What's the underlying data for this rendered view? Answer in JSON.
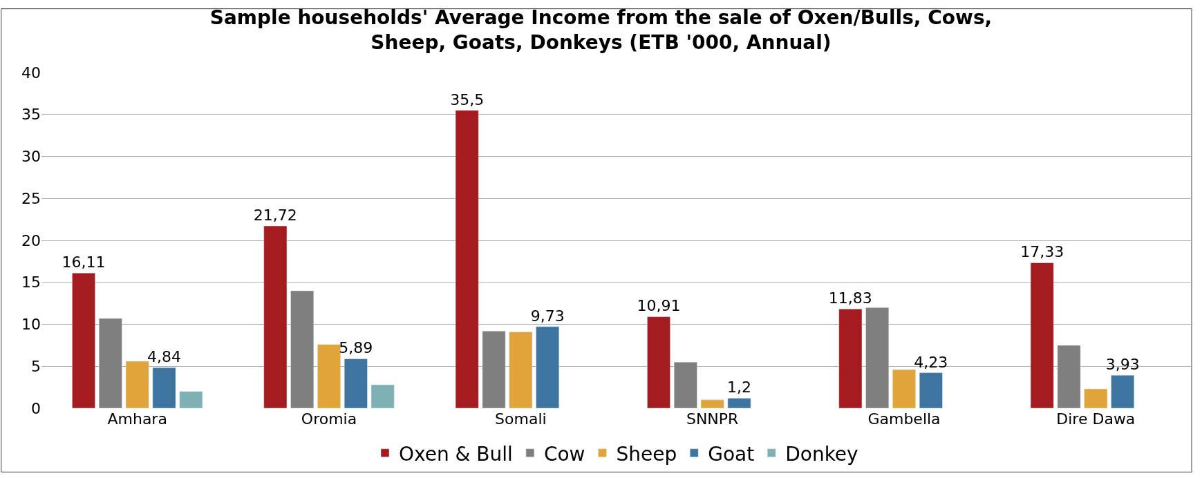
{
  "chart_data": {
    "type": "bar",
    "title": "Sample households' Average Income from the sale of Oxen/Bulls, Cows,\nSheep, Goats, Donkeys (ETB '000, Annual)",
    "categories": [
      "Amhara",
      "Oromia",
      "Somali",
      "SNNPR",
      "Gambella",
      "Dire Dawa"
    ],
    "series": [
      {
        "name": "Oxen & Bull",
        "color": "#a51c20",
        "values": [
          16.11,
          21.72,
          35.5,
          10.91,
          11.83,
          17.33
        ],
        "value_labels": [
          "16,11",
          "21,72",
          "35,5",
          "10,91",
          "11,83",
          "17,33"
        ]
      },
      {
        "name": "Cow",
        "color": "#7f7f7f",
        "values": [
          10.7,
          14.0,
          9.2,
          5.5,
          12.0,
          7.5
        ]
      },
      {
        "name": "Sheep",
        "color": "#e0a43a",
        "values": [
          5.6,
          7.6,
          9.1,
          1.0,
          4.6,
          2.3
        ]
      },
      {
        "name": "Goat",
        "color": "#3e74a0",
        "values": [
          4.84,
          5.89,
          9.73,
          1.2,
          4.23,
          3.93
        ],
        "value_labels": [
          "4,84",
          "5,89",
          "9,73",
          "1,2",
          "4,23",
          "3,93"
        ]
      },
      {
        "name": "Donkey",
        "color": "#7fb1b4",
        "values": [
          2.0,
          2.8,
          null,
          null,
          null,
          null
        ]
      }
    ],
    "ylim": [
      0,
      40
    ],
    "yticks": [
      0,
      5,
      10,
      15,
      20,
      25,
      30,
      35,
      40
    ],
    "grid": "y",
    "legend": "bottom"
  }
}
